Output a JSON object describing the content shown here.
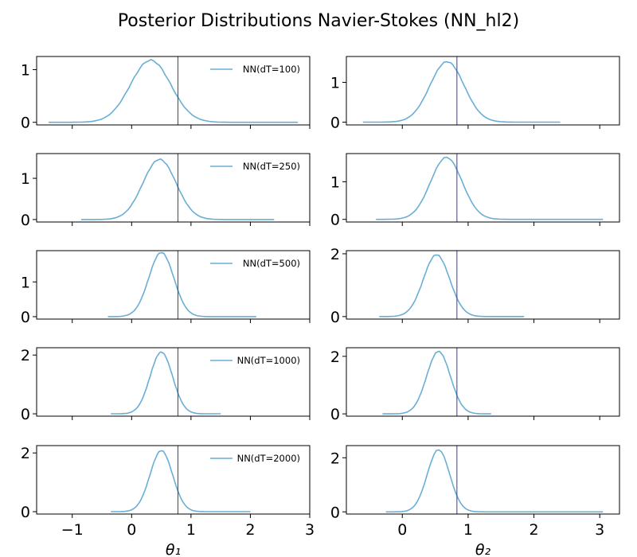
{
  "title": "Posterior Distributions Navier-Stokes (NN_hl2)",
  "colors": {
    "curve": "#6aaed6",
    "truth": "#3b3b9e",
    "axis": "#000000"
  },
  "chart_data": {
    "type": "line",
    "rows": [
      "NN(dT=100)",
      "NN(dT=250)",
      "NN(dT=500)",
      "NN(dT=1000)",
      "NN(dT=2000)"
    ],
    "columns": [
      {
        "xlabel": "θ₁",
        "xlim": [
          -1.6,
          3.0
        ],
        "xticks": [
          -1,
          0,
          1,
          2,
          3
        ],
        "true_value": 0.78,
        "panels": [
          {
            "legend": "NN(dT=100)",
            "ylim": [
              -0.05,
              1.25
            ],
            "yticks": [
              0,
              1
            ],
            "mean": 0.32,
            "sd": 0.34,
            "peak": 1.18,
            "xmin": -1.4,
            "xmax": 2.8
          },
          {
            "legend": "NN(dT=250)",
            "ylim": [
              -0.06,
              1.6
            ],
            "yticks": [
              0,
              1
            ],
            "mean": 0.47,
            "sd": 0.28,
            "peak": 1.46,
            "xmin": -0.85,
            "xmax": 2.4
          },
          {
            "legend": "NN(dT=500)",
            "ylim": [
              -0.07,
              1.9
            ],
            "yticks": [
              0,
              1
            ],
            "mean": 0.5,
            "sd": 0.21,
            "peak": 1.85,
            "xmin": -0.4,
            "xmax": 2.1
          },
          {
            "legend": "NN(dT=1000)",
            "ylim": [
              -0.08,
              2.25
            ],
            "yticks": [
              0,
              2
            ],
            "mean": 0.5,
            "sd": 0.19,
            "peak": 2.1,
            "xmin": -0.35,
            "xmax": 1.5
          },
          {
            "legend": "NN(dT=2000)",
            "ylim": [
              -0.08,
              2.25
            ],
            "yticks": [
              0,
              2
            ],
            "mean": 0.5,
            "sd": 0.19,
            "peak": 2.08,
            "xmin": -0.35,
            "xmax": 2.0
          }
        ]
      },
      {
        "xlabel": "θ₂",
        "xlim": [
          -0.85,
          3.3
        ],
        "xticks": [
          0,
          1,
          2,
          3
        ],
        "true_value": 0.83,
        "panels": [
          {
            "legend": "",
            "ylim": [
              -0.07,
              1.65
            ],
            "yticks": [
              0,
              1
            ],
            "mean": 0.68,
            "sd": 0.26,
            "peak": 1.52,
            "xmin": -0.6,
            "xmax": 2.4
          },
          {
            "legend": "",
            "ylim": [
              -0.07,
              1.75
            ],
            "yticks": [
              0,
              1
            ],
            "mean": 0.67,
            "sd": 0.24,
            "peak": 1.65,
            "xmin": -0.4,
            "xmax": 3.05
          },
          {
            "legend": "",
            "ylim": [
              -0.08,
              2.1
            ],
            "yticks": [
              0,
              2
            ],
            "mean": 0.52,
            "sd": 0.2,
            "peak": 1.97,
            "xmin": -0.35,
            "xmax": 1.85
          },
          {
            "legend": "",
            "ylim": [
              -0.08,
              2.3
            ],
            "yticks": [
              0,
              2
            ],
            "mean": 0.55,
            "sd": 0.18,
            "peak": 2.17,
            "xmin": -0.3,
            "xmax": 1.35
          },
          {
            "legend": "",
            "ylim": [
              -0.08,
              2.45
            ],
            "yticks": [
              0,
              2
            ],
            "mean": 0.55,
            "sd": 0.17,
            "peak": 2.3,
            "xmin": -0.25,
            "xmax": 3.05
          }
        ]
      }
    ]
  }
}
